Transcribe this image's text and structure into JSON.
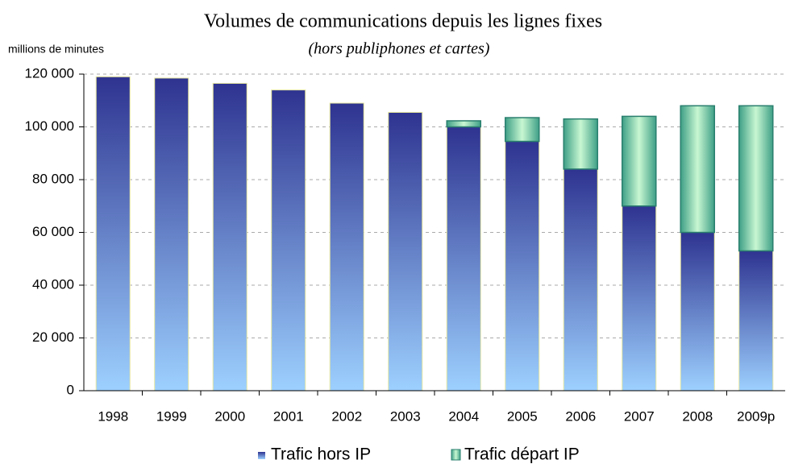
{
  "chart_data": {
    "type": "stacked_bar",
    "title": "Volumes de communications depuis les lignes fixes",
    "subtitle": "(hors publiphones et cartes)",
    "y_label": "millions de minutes",
    "categories": [
      "1998",
      "1999",
      "2000",
      "2001",
      "2002",
      "2003",
      "2004",
      "2005",
      "2006",
      "2007",
      "2008",
      "2009p"
    ],
    "series": [
      {
        "name": "Trafic hors IP",
        "color": "#2e3390",
        "values": [
          119000,
          118500,
          116500,
          114000,
          109000,
          105500,
          100000,
          94500,
          84000,
          70000,
          60000,
          53000
        ]
      },
      {
        "name": "Trafic départ IP",
        "color": "#c8f7d2",
        "values": [
          0,
          0,
          0,
          0,
          0,
          0,
          2300,
          9000,
          19000,
          34000,
          48000,
          55000
        ]
      }
    ],
    "ylim": [
      0,
      120000
    ],
    "yticks": [
      0,
      {
        "value": 20000,
        "label": "20 000"
      },
      {
        "value": 40000,
        "label": "40 000"
      },
      {
        "value": 60000,
        "label": "60 000"
      },
      {
        "value": 80000,
        "label": "80 000"
      },
      {
        "value": 100000,
        "label": "100 000"
      },
      {
        "value": 120000,
        "label": "120 000"
      }
    ],
    "grid": true,
    "legend": "bottom"
  }
}
